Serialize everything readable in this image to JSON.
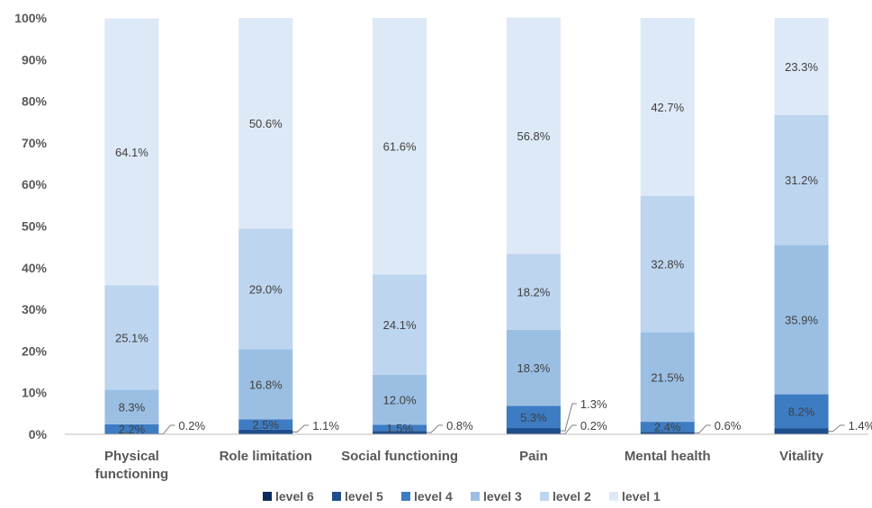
{
  "chart_data": {
    "type": "bar",
    "stacked": true,
    "percent": true,
    "categories": [
      [
        "Physical",
        "functioning"
      ],
      [
        "Role limitation"
      ],
      [
        "Social functioning"
      ],
      [
        "Pain"
      ],
      [
        "Mental health"
      ],
      [
        "Vitality"
      ]
    ],
    "series": [
      {
        "name": "level 6",
        "color": "#0b2a5b",
        "values": [
          0.0,
          0.0,
          0.0,
          0.2,
          0.0,
          0.0
        ]
      },
      {
        "name": "level 5",
        "color": "#1f4e8c",
        "values": [
          0.2,
          1.1,
          0.8,
          1.3,
          0.6,
          1.4
        ]
      },
      {
        "name": "level 4",
        "color": "#3d7cc2",
        "values": [
          2.2,
          2.5,
          1.5,
          5.3,
          2.4,
          8.2
        ]
      },
      {
        "name": "level 3",
        "color": "#9bbfe3",
        "values": [
          8.3,
          16.8,
          12.0,
          18.3,
          21.5,
          35.9
        ]
      },
      {
        "name": "level 2",
        "color": "#bdd5ee",
        "values": [
          25.1,
          29.0,
          24.1,
          18.2,
          32.8,
          31.2
        ]
      },
      {
        "name": "level 1",
        "color": "#dde9f6",
        "values": [
          64.1,
          50.6,
          61.6,
          56.8,
          42.7,
          23.3
        ]
      }
    ],
    "labels": [
      [
        {
          "text": "0.2%",
          "series": 1,
          "callout": true
        },
        {
          "text": "2.2%",
          "series": 2
        },
        {
          "text": "8.3%",
          "series": 3
        },
        {
          "text": "25.1%",
          "series": 4
        },
        {
          "text": "64.1%",
          "series": 5
        }
      ],
      [
        {
          "text": "1.1%",
          "series": 1,
          "callout": true
        },
        {
          "text": "2.5%",
          "series": 2
        },
        {
          "text": "16.8%",
          "series": 3
        },
        {
          "text": "29.0%",
          "series": 4
        },
        {
          "text": "50.6%",
          "series": 5
        }
      ],
      [
        {
          "text": "0.8%",
          "series": 1,
          "callout": true
        },
        {
          "text": "1.5%",
          "series": 2
        },
        {
          "text": "12.0%",
          "series": 3
        },
        {
          "text": "24.1%",
          "series": 4
        },
        {
          "text": "61.6%",
          "series": 5
        }
      ],
      [
        {
          "text": "0.2%",
          "series": 0,
          "callout": true
        },
        {
          "text": "1.3%",
          "series": 1,
          "callout": true,
          "upper": true
        },
        {
          "text": "5.3%",
          "series": 2
        },
        {
          "text": "18.3%",
          "series": 3
        },
        {
          "text": "18.2%",
          "series": 4
        },
        {
          "text": "56.8%",
          "series": 5
        }
      ],
      [
        {
          "text": "0.6%",
          "series": 1,
          "callout": true
        },
        {
          "text": "2.4%",
          "series": 2
        },
        {
          "text": "21.5%",
          "series": 3
        },
        {
          "text": "32.8%",
          "series": 4
        },
        {
          "text": "42.7%",
          "series": 5
        }
      ],
      [
        {
          "text": "1.4%",
          "series": 1,
          "callout": true
        },
        {
          "text": "8.2%",
          "series": 2
        },
        {
          "text": "35.9%",
          "series": 3
        },
        {
          "text": "31.2%",
          "series": 4
        },
        {
          "text": "23.3%",
          "series": 5
        }
      ]
    ],
    "yticks": [
      "0%",
      "10%",
      "20%",
      "30%",
      "40%",
      "50%",
      "60%",
      "70%",
      "80%",
      "90%",
      "100%"
    ],
    "ylim": [
      0,
      100
    ],
    "grid": false,
    "legend_position": "bottom",
    "title": "",
    "xlabel": "",
    "ylabel": ""
  }
}
